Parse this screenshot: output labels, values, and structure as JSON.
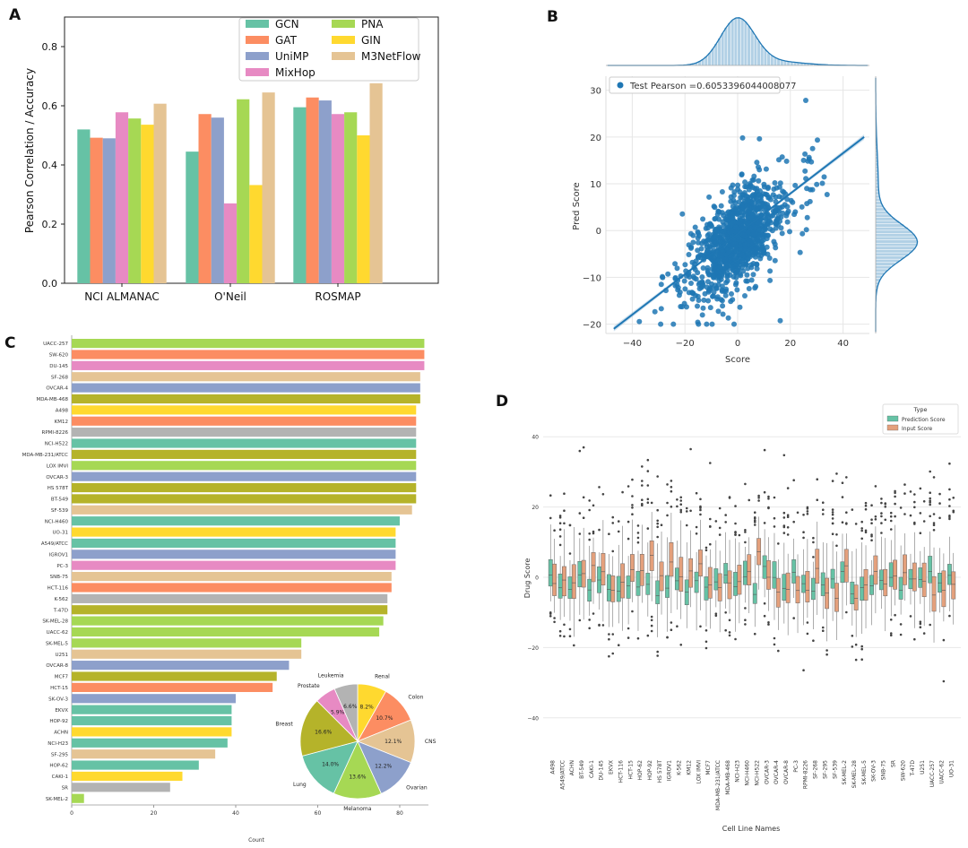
{
  "panel_labels": {
    "a": "A",
    "b": "B",
    "c": "C",
    "d": "D"
  },
  "colors": {
    "GCN": "#66c2a5",
    "GAT": "#fc8d62",
    "UniMP": "#8da0cb",
    "MixHop": "#e78ac3",
    "PNA": "#a6d854",
    "GIN": "#ffd92f",
    "M3NetFlow": "#e5c494",
    "Other": "#b3b3b3",
    "blue": "#1f77b4",
    "pred": "#66c2a5",
    "input": "#e4a07c"
  },
  "chart_data": [
    {
      "type": "bar",
      "id": "A",
      "ylabel": "Pearson Correlation / Accuracy",
      "xlabel": "",
      "ylim": [
        0,
        0.9
      ],
      "yticks": [
        "0.0",
        "0.2",
        "0.4",
        "0.6",
        "0.8"
      ],
      "categories": [
        "NCI ALMANAC",
        "O'Neil",
        "ROSMAP"
      ],
      "legend": "top-right",
      "series": [
        {
          "name": "GCN",
          "values": [
            0.52,
            0.445,
            0.595
          ]
        },
        {
          "name": "GAT",
          "values": [
            0.492,
            0.572,
            0.628
          ]
        },
        {
          "name": "UniMP",
          "values": [
            0.49,
            0.56,
            0.618
          ]
        },
        {
          "name": "MixHop",
          "values": [
            0.578,
            0.27,
            0.572
          ]
        },
        {
          "name": "PNA",
          "values": [
            0.557,
            0.622,
            0.578
          ]
        },
        {
          "name": "GIN",
          "values": [
            0.536,
            0.332,
            0.5
          ]
        },
        {
          "name": "M3NetFlow",
          "values": [
            0.607,
            0.645,
            0.676
          ]
        }
      ]
    },
    {
      "type": "scatter",
      "id": "B",
      "xlabel": "Score",
      "ylabel": "Pred Score",
      "xlim": [
        -50,
        50
      ],
      "ylim": [
        -22,
        33
      ],
      "xticks": [
        "−40",
        "−20",
        "0",
        "20",
        "40"
      ],
      "yticks": [
        "−20",
        "−10",
        "0",
        "10",
        "20",
        "30"
      ],
      "legend_label": "Test Pearson =0.6053396044008077",
      "regression": {
        "x": [
          -47,
          48
        ],
        "y": [
          -21,
          20
        ]
      },
      "marginal_x_peak": 0,
      "marginal_y_peak": -2.5
    },
    {
      "type": "bar",
      "orientation": "horizontal",
      "id": "C",
      "xlabel": "Count",
      "xlim": [
        0,
        87
      ],
      "xticks": [
        "0",
        "20",
        "40",
        "60",
        "80"
      ],
      "categories": [
        "UACC-257",
        "SW-620",
        "DU-145",
        "SF-268",
        "OVCAR-4",
        "MDA-MB-468",
        "A498",
        "KM12",
        "RPMI-8226",
        "NCI-H522",
        "MDA-MB-231/ATCC",
        "LOX IMVI",
        "OVCAR-3",
        "HS 578T",
        "BT-549",
        "SF-539",
        "NCI-H460",
        "UO-31",
        "A549/ATCC",
        "IGROV1",
        "PC-3",
        "SNB-75",
        "HCT-116",
        "K-562",
        "T-47D",
        "SK-MEL-28",
        "UACC-62",
        "SK-MEL-5",
        "U251",
        "OVCAR-8",
        "MCF7",
        "HCT-15",
        "SK-OV-3",
        "EKVX",
        "HOP-92",
        "ACHN",
        "NCI-H23",
        "SF-295",
        "HOP-62",
        "CAKI-1",
        "SR",
        "SK-MEL-2"
      ],
      "values": [
        86,
        86,
        86,
        85,
        85,
        85,
        84,
        84,
        84,
        84,
        84,
        84,
        84,
        84,
        84,
        83,
        80,
        79,
        79,
        79,
        79,
        78,
        78,
        77,
        77,
        76,
        75,
        56,
        56,
        53,
        50,
        49,
        40,
        39,
        39,
        39,
        38,
        35,
        31,
        27,
        24,
        3
      ],
      "tissues": [
        "Melanoma",
        "Colon",
        "Prostate",
        "CNS",
        "Ovarian",
        "Breast",
        "Renal",
        "Colon",
        "Leukemia",
        "Lung",
        "Breast",
        "Melanoma",
        "Ovarian",
        "Breast",
        "Breast",
        "CNS",
        "Lung",
        "Renal",
        "Lung",
        "Ovarian",
        "Prostate",
        "CNS",
        "Colon",
        "Leukemia",
        "Breast",
        "Melanoma",
        "Melanoma",
        "Melanoma",
        "CNS",
        "Ovarian",
        "Breast",
        "Colon",
        "Ovarian",
        "Lung",
        "Lung",
        "Renal",
        "Lung",
        "CNS",
        "Lung",
        "Renal",
        "Leukemia",
        "Melanoma"
      ]
    },
    {
      "type": "pie",
      "id": "C-inset",
      "slices": [
        {
          "label": "Renal",
          "value": 8.2,
          "text": "8.2%",
          "color": "#ffd92f"
        },
        {
          "label": "Colon",
          "value": 10.7,
          "text": "10.7%",
          "color": "#fc8d62"
        },
        {
          "label": "CNS",
          "value": 12.1,
          "text": "12.1%",
          "color": "#e5c494"
        },
        {
          "label": "Ovarian",
          "value": 12.2,
          "text": "12.2%",
          "color": "#8da0cb"
        },
        {
          "label": "Melanoma",
          "value": 13.6,
          "text": "13.6%",
          "color": "#a6d854"
        },
        {
          "label": "Lung",
          "value": 14.0,
          "text": "14.0%",
          "color": "#66c2a5"
        },
        {
          "label": "Breast",
          "value": 16.6,
          "text": "16.6%",
          "color": "#b5b32a"
        },
        {
          "label": "Prostate",
          "value": 5.9,
          "text": "5.9%",
          "color": "#e78ac3"
        },
        {
          "label": "Leukemia",
          "value": 6.6,
          "text": "6.6%",
          "color": "#b3b3b3"
        }
      ]
    },
    {
      "type": "box",
      "id": "D",
      "xlabel": "Cell Line Names",
      "ylabel": "Drug Score",
      "ylim": [
        -50,
        50
      ],
      "yticks": [
        "40",
        "20",
        "0",
        "−20",
        "−40"
      ],
      "legend_title": "Type",
      "legend": [
        "Prediction Score",
        "Input Score"
      ],
      "categories": [
        "A498",
        "A549/ATCC",
        "ACHN",
        "BT-549",
        "CAKI-1",
        "DU-145",
        "EKVX",
        "HCT-116",
        "HCT-15",
        "HOP-62",
        "HOP-92",
        "HS 578T",
        "IGROV1",
        "K-562",
        "KM12",
        "LOX IMVI",
        "MCF7",
        "MDA-MB-231/ATCC",
        "MDA-MB-468",
        "NCI-H23",
        "NCI-H460",
        "NCI-H522",
        "OVCAR-3",
        "OVCAR-4",
        "OVCAR-8",
        "PC-3",
        "RPMI-8226",
        "SF-268",
        "SF-295",
        "SF-539",
        "SK-MEL-2",
        "SK-MEL-28",
        "SK-MEL-5",
        "SK-OV-3",
        "SNB-75",
        "SR",
        "SW-620",
        "T-47D",
        "U251",
        "UACC-257",
        "UACC-62",
        "UO-31"
      ]
    }
  ]
}
